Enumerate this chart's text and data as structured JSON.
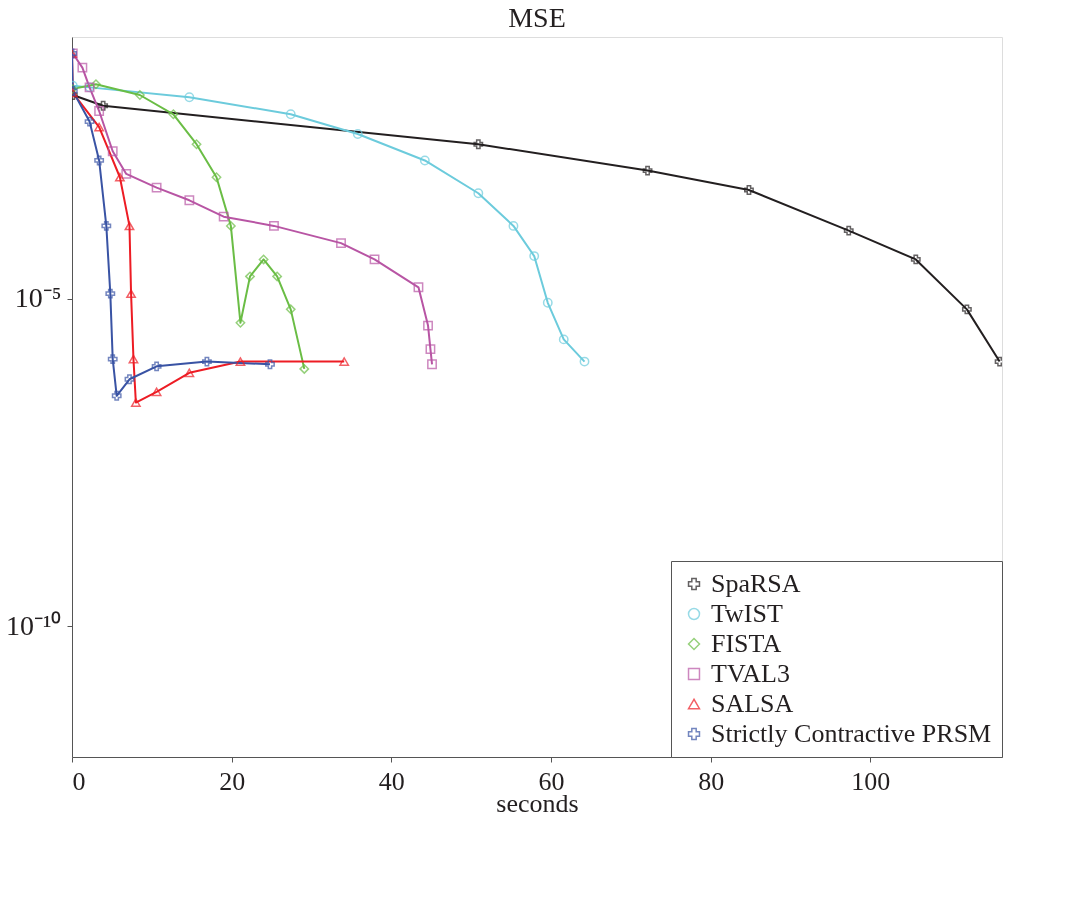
{
  "chart_data": {
    "type": "line",
    "title": "MSE",
    "xlabel": "seconds",
    "log": "y",
    "grid": false,
    "legend": "bottom right",
    "line_style": "solid",
    "xlim": [
      0,
      116.5
    ],
    "xticks": [
      0,
      20,
      40,
      60,
      80,
      100
    ],
    "ylim": [
      1e-12,
      0.1
    ],
    "yticks": [
      {
        "value": 1e-05,
        "label": "10⁻⁵"
      },
      {
        "value": 1e-10,
        "label": "10⁻¹⁰"
      }
    ],
    "series": [
      {
        "name": "SpaRSA",
        "color": "#231f20",
        "marker": "cross",
        "x": [
          0.1,
          3.9,
          50.9,
          72.1,
          84.8,
          97.3,
          105.7,
          112.1,
          116.2
        ],
        "values": [
          0.013,
          0.0089,
          0.0023,
          0.00091,
          0.00046,
          0.00011,
          4e-05,
          6.9e-06,
          1.1e-06
        ]
      },
      {
        "name": "TwIST",
        "color": "#6ccbdc",
        "marker": "circle",
        "x": [
          0.1,
          2.2,
          14.7,
          27.4,
          35.8,
          44.2,
          50.9,
          55.3,
          57.9,
          59.6,
          61.6,
          64.2
        ],
        "values": [
          0.018,
          0.017,
          0.012,
          0.0066,
          0.0033,
          0.0013,
          0.00041,
          0.00013,
          4.5e-05,
          8.7e-06,
          2.4e-06,
          1.1e-06
        ]
      },
      {
        "name": "FISTA",
        "color": "#6abd45",
        "marker": "diamond",
        "x": [
          0,
          3.0,
          8.5,
          12.7,
          15.6,
          18.1,
          19.9,
          21.1,
          22.3,
          24.0,
          25.7,
          27.4,
          29.1
        ],
        "values": [
          0.016,
          0.019,
          0.013,
          0.0066,
          0.0023,
          0.00072,
          0.00013,
          4.3e-06,
          2.2e-05,
          4e-05,
          2.2e-05,
          6.9e-06,
          8.5e-07
        ]
      },
      {
        "name": "TVAL3",
        "color": "#b855a4",
        "marker": "square",
        "x": [
          0.1,
          1.3,
          2.2,
          3.4,
          5.1,
          6.8,
          10.6,
          14.7,
          19.0,
          25.3,
          33.7,
          37.9,
          43.4,
          44.6,
          44.9,
          45.1
        ],
        "values": [
          0.056,
          0.034,
          0.017,
          0.0074,
          0.0018,
          0.00081,
          0.0005,
          0.00032,
          0.00018,
          0.00013,
          7.1e-05,
          4e-05,
          1.5e-05,
          3.9e-06,
          1.7e-06,
          1e-06
        ]
      },
      {
        "name": "SALSA",
        "color": "#ed1c24",
        "marker": "triangle",
        "x": [
          0,
          0.1,
          3.4,
          6.0,
          7.2,
          7.4,
          7.7,
          8.0,
          10.6,
          14.7,
          21.1,
          34.1
        ],
        "values": [
          0.056,
          0.014,
          0.0042,
          0.00072,
          0.00013,
          1.2e-05,
          1.2e-06,
          2.6e-07,
          3.8e-07,
          7.4e-07,
          1.1e-06,
          1.1e-06
        ]
      },
      {
        "name": "Strictly Contractive PRSM",
        "color": "#3953a4",
        "marker": "cross",
        "x": [
          0,
          0.1,
          2.2,
          3.4,
          4.3,
          4.8,
          5.1,
          5.6,
          7.2,
          10.6,
          16.9,
          24.8
        ],
        "values": [
          0.056,
          0.015,
          0.0051,
          0.0013,
          0.00013,
          1.2e-05,
          1.2e-06,
          3.3e-07,
          5.9e-07,
          9.3e-07,
          1.1e-06,
          1e-06
        ]
      }
    ]
  }
}
